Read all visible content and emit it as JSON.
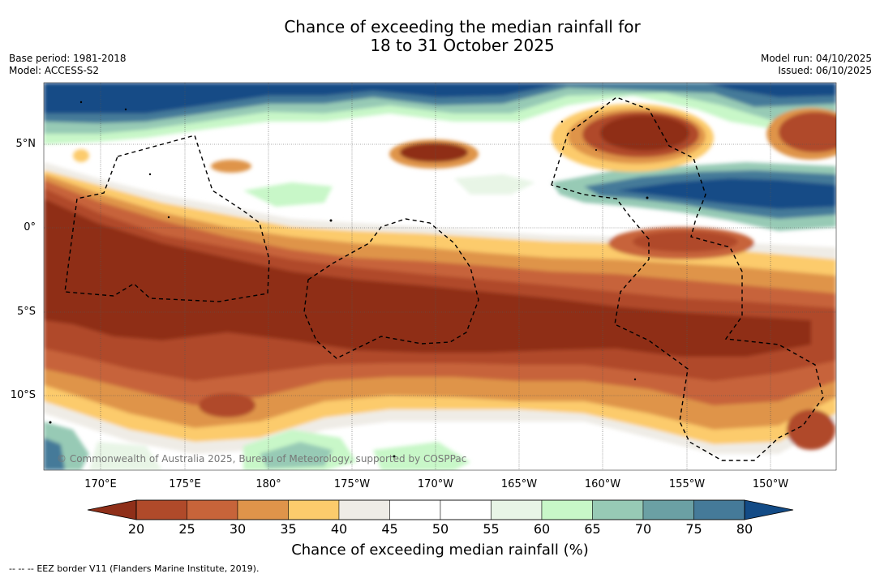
{
  "header": {
    "title_line1": "Chance of exceeding the median rainfall for",
    "title_line2": "18 to 31 October 2025",
    "base_period": "Base period: 1981-2018",
    "model": "Model: ACCESS-S2",
    "model_run": "Model run: 04/10/2025",
    "issued": "Issued: 06/10/2025"
  },
  "map": {
    "lat_labels": [
      "5°N",
      "0°",
      "5°S",
      "10°S"
    ],
    "lon_labels": [
      "170°E",
      "175°E",
      "180°",
      "175°W",
      "170°W",
      "165°W",
      "160°W",
      "155°W",
      "150°W"
    ],
    "credit": "© Commonwealth of Australia 2025, Bureau of Meteorology, supported by COSPPac"
  },
  "colorbar": {
    "ticks": [
      "20",
      "25",
      "30",
      "35",
      "40",
      "45",
      "50",
      "55",
      "60",
      "65",
      "70",
      "75",
      "80"
    ],
    "colors": [
      "#8f2f19",
      "#b04a2a",
      "#c7643a",
      "#df944a",
      "#fccb6c",
      "#efece6",
      "#ffffff",
      "#ffffff",
      "#e8f5e6",
      "#c8f7c8",
      "#97cab5",
      "#6ba0a4",
      "#457a99",
      "#134b86"
    ],
    "label": "Chance of exceeding median rainfall (%)"
  },
  "footnote": {
    "legend_symbol": "--  --  --",
    "legend_text": "EEZ border V11 (Flanders Marine Institute, 2019)."
  }
}
